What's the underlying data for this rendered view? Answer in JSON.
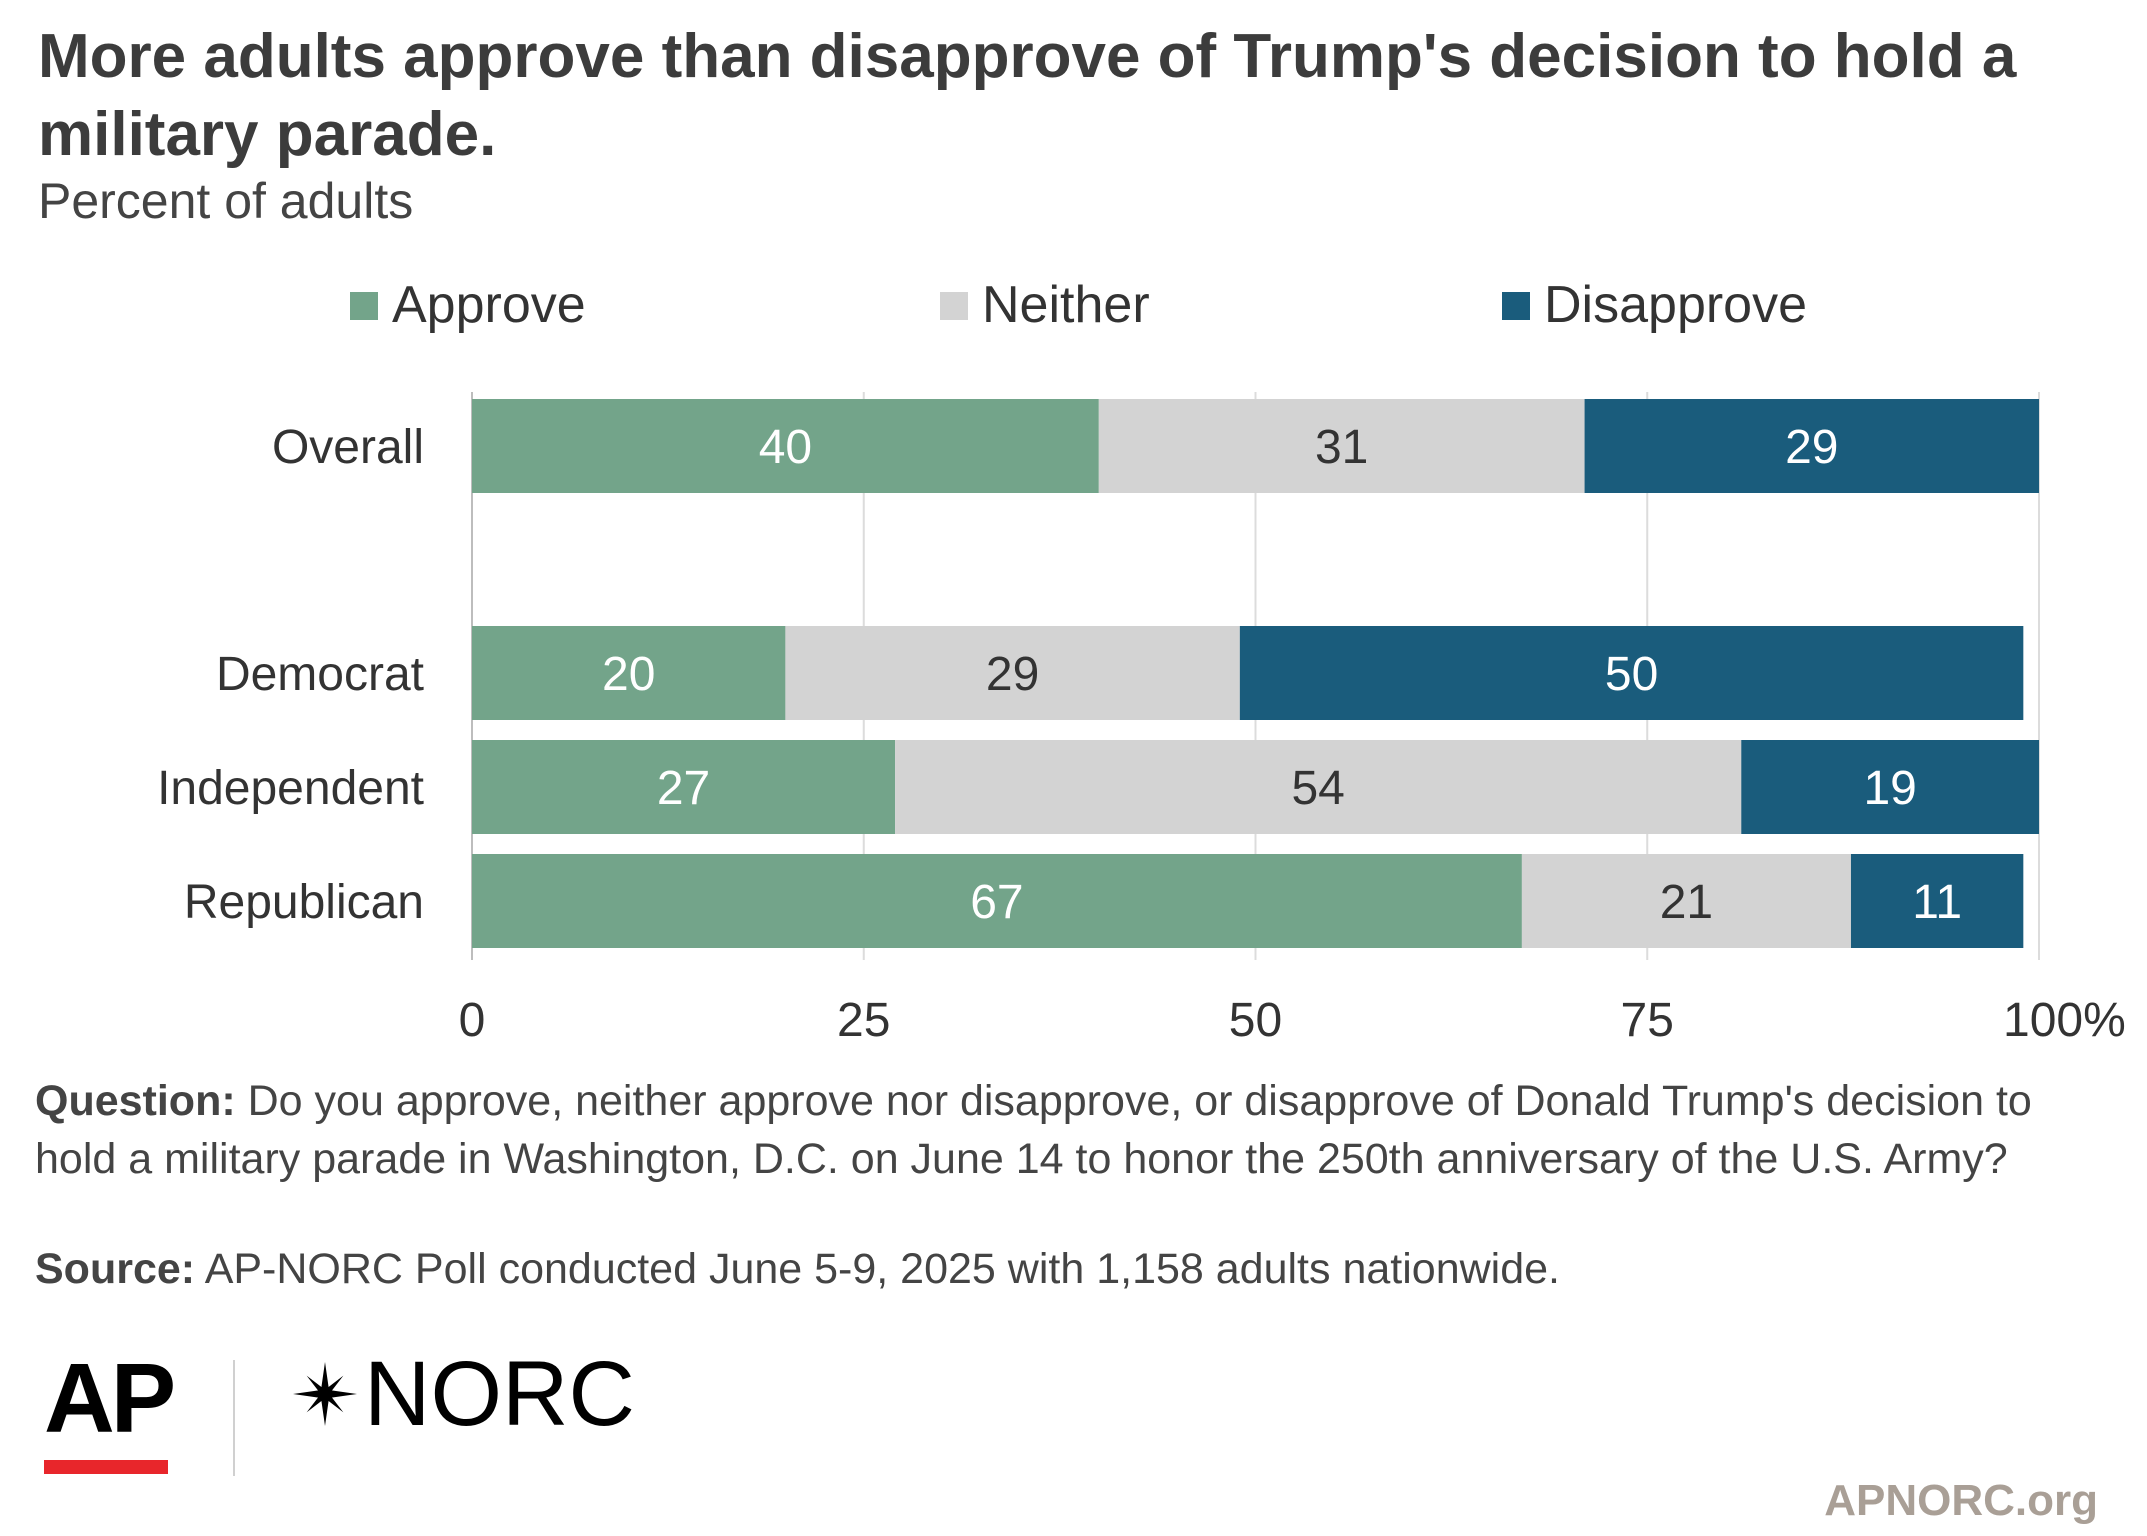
{
  "title": "More adults approve than disapprove of Trump's decision to hold a military parade.",
  "subtitle": "Percent of adults",
  "footnote": {
    "question_label": "Question:",
    "question_text": "Do you approve, neither approve nor disapprove, or disapprove of Donald Trump's decision to hold a military parade in Washington, D.C. on June 14 to honor the 250th anniversary of the U.S. Army?",
    "source_label": "Source:",
    "source_text": "AP-NORC Poll conducted June 5-9, 2025 with 1,158 adults nationwide."
  },
  "logos": {
    "ap": "AP",
    "norc": "NORC"
  },
  "site": "APNORC.org",
  "chart_data": {
    "type": "bar",
    "orientation": "horizontal",
    "stacked": true,
    "categories": [
      "Overall",
      "Democrat",
      "Independent",
      "Republican"
    ],
    "series": [
      {
        "name": "Approve",
        "color": "#73a48a",
        "label_color": "#ffffff",
        "values": [
          40,
          20,
          27,
          67
        ]
      },
      {
        "name": "Neither",
        "color": "#d3d3d3",
        "label_color": "#333333",
        "values": [
          31,
          29,
          54,
          21
        ]
      },
      {
        "name": "Disapprove",
        "color": "#1a5c7c",
        "label_color": "#ffffff",
        "values": [
          29,
          50,
          19,
          11
        ]
      }
    ],
    "xlim": [
      0,
      100
    ],
    "xticks": [
      "0",
      "25",
      "50",
      "75",
      "100%"
    ],
    "xtick_values": [
      0,
      25,
      50,
      75,
      100
    ],
    "grid": true,
    "legend_position": "top"
  }
}
